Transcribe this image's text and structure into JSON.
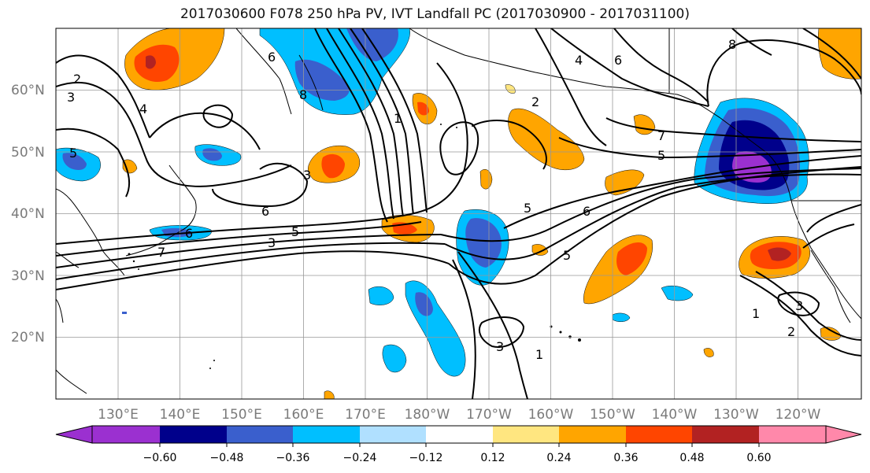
{
  "title": "2017030600 F078 250 hPa PV, IVT Landfall PC (2017030900 - 2017031100)",
  "lat_labels": [
    "60°N",
    "50°N",
    "40°N",
    "30°N",
    "20°N"
  ],
  "lon_labels": [
    "130°E",
    "140°E",
    "150°E",
    "160°E",
    "170°E",
    "180°W",
    "170°W",
    "160°W",
    "150°W",
    "140°W",
    "130°W",
    "120°W"
  ],
  "contour_labels": [
    "2",
    "3",
    "4",
    "5",
    "6",
    "7",
    "8",
    "1",
    "3",
    "5",
    "6",
    "7",
    "5",
    "6",
    "5",
    "6",
    "5",
    "4",
    "2",
    "3",
    "3",
    "1",
    "1",
    "2",
    "3",
    "6",
    "8"
  ],
  "colorbar": {
    "ticks": [
      "−0.60",
      "−0.48",
      "−0.36",
      "−0.24",
      "−0.12",
      "0.12",
      "0.24",
      "0.36",
      "0.48",
      "0.60"
    ],
    "colors": [
      "#9b30d0",
      "#00008b",
      "#3a5fcd",
      "#00bfff",
      "#b0e0ff",
      "#ffffff",
      "#ffe680",
      "#ffa500",
      "#ff4500",
      "#b22222",
      "#ff88aa"
    ]
  },
  "shading_colors": {
    "dark_purple": "#9b30d0",
    "navy": "#00008b",
    "blue": "#3a5fcd",
    "cyan": "#00bfff",
    "light_blue": "#b0e0ff",
    "yellow": "#ffe680",
    "orange": "#ffa500",
    "red_orange": "#ff4500",
    "dark_red": "#b22222"
  }
}
